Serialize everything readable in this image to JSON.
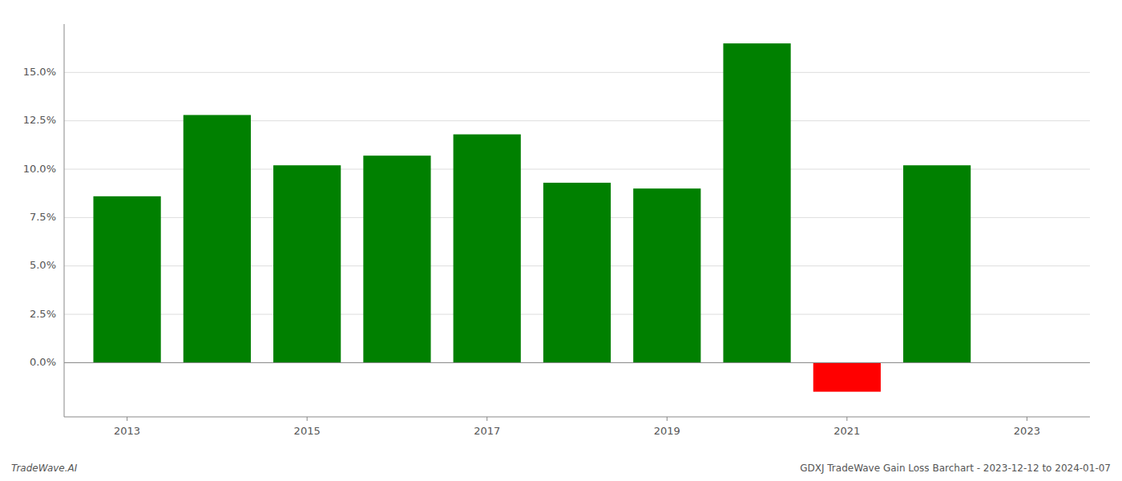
{
  "chart_data": {
    "type": "bar",
    "title": "GDXJ TradeWave Gain Loss Barchart - 2023-12-12 to 2024-01-07",
    "annotations": [
      "TradeWave.AI"
    ],
    "x": [
      2013,
      2014,
      2015,
      2016,
      2017,
      2018,
      2019,
      2020,
      2021,
      2022
    ],
    "values": [
      0.086,
      0.128,
      0.102,
      0.107,
      0.118,
      0.093,
      0.09,
      0.165,
      -0.015,
      0.102
    ],
    "colors": [
      "#008000",
      "#008000",
      "#008000",
      "#008000",
      "#008000",
      "#008000",
      "#008000",
      "#008000",
      "#ff0000",
      "#008000"
    ],
    "xlim": [
      2012.3,
      2023.7
    ],
    "xticks": [
      2013,
      2015,
      2017,
      2019,
      2021,
      2023
    ],
    "ylim": [
      -0.028,
      0.175
    ],
    "yticks": [
      {
        "value": 0.0,
        "label": "0.0%"
      },
      {
        "value": 0.025,
        "label": "2.5%"
      },
      {
        "value": 0.05,
        "label": "5.0%"
      },
      {
        "value": 0.075,
        "label": "7.5%"
      },
      {
        "value": 0.1,
        "label": "10.0%"
      },
      {
        "value": 0.125,
        "label": "12.5%"
      },
      {
        "value": 0.15,
        "label": "15.0%"
      }
    ],
    "grid": true
  }
}
